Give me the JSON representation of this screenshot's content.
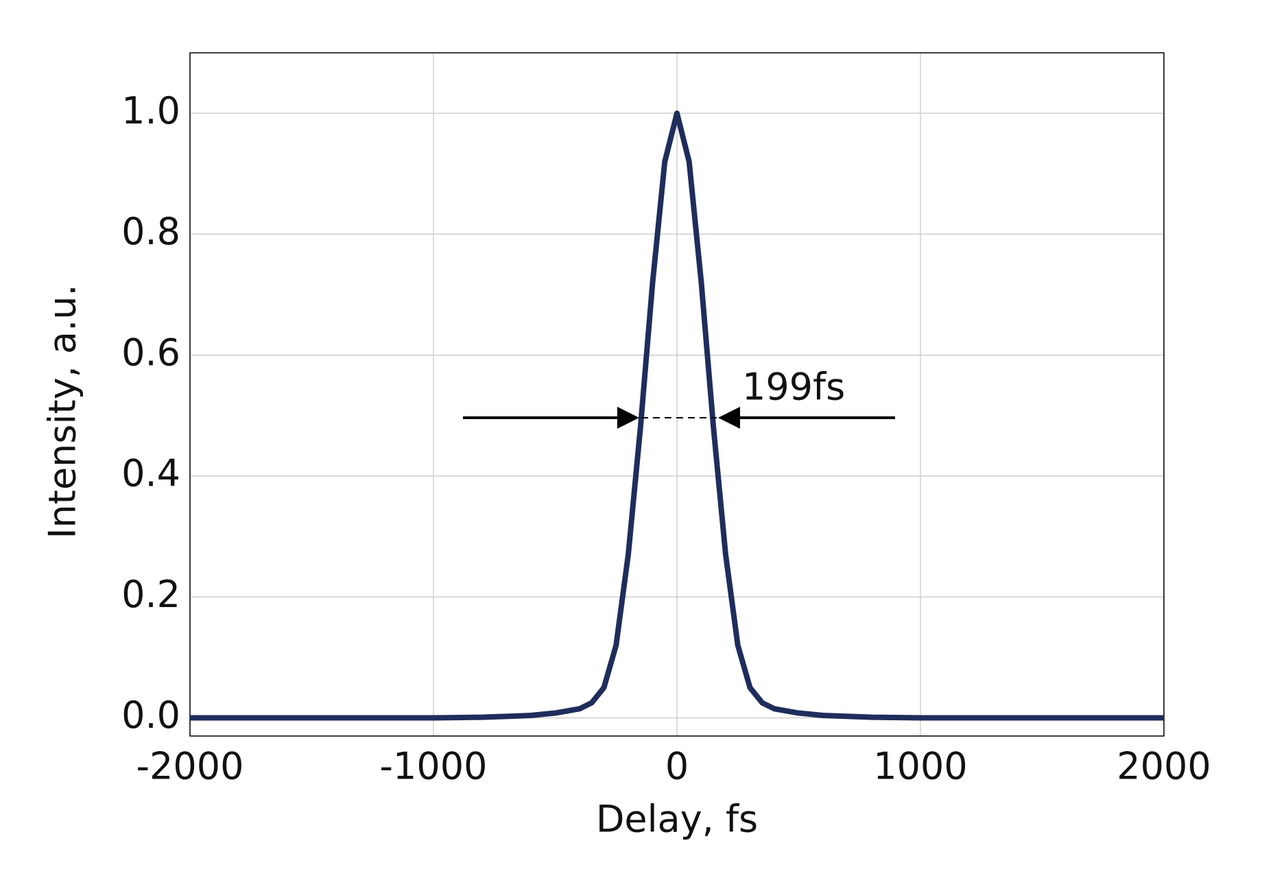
{
  "chart_data": {
    "type": "line",
    "x_label": "Delay, fs",
    "y_label": "Intensity, a.u.",
    "annotation": "199fs",
    "x": [
      -2000,
      -1000,
      -800,
      -600,
      -500,
      -400,
      -350,
      -300,
      -250,
      -200,
      -150,
      -100,
      -50,
      0,
      50,
      100,
      150,
      200,
      250,
      300,
      350,
      400,
      500,
      600,
      800,
      1000,
      2000
    ],
    "series": [
      {
        "name": "Intensity",
        "color": "#1f2d5c",
        "values": [
          0,
          0,
          0.001,
          0.004,
          0.008,
          0.015,
          0.025,
          0.05,
          0.12,
          0.27,
          0.48,
          0.72,
          0.92,
          1,
          0.92,
          0.72,
          0.48,
          0.27,
          0.12,
          0.05,
          0.025,
          0.015,
          0.008,
          0.004,
          0.001,
          0,
          0
        ]
      }
    ],
    "xlim": [
      -2000,
      2000
    ],
    "xticks": [
      -2000,
      -1000,
      0,
      1000,
      2000
    ],
    "ylim": [
      -0.03,
      1.1
    ],
    "yticks": [
      {
        "value": 0,
        "label": "0.0"
      },
      0.2,
      0.4,
      0.6,
      0.8,
      {
        "value": 1,
        "label": "1.0"
      }
    ],
    "grid": true
  }
}
